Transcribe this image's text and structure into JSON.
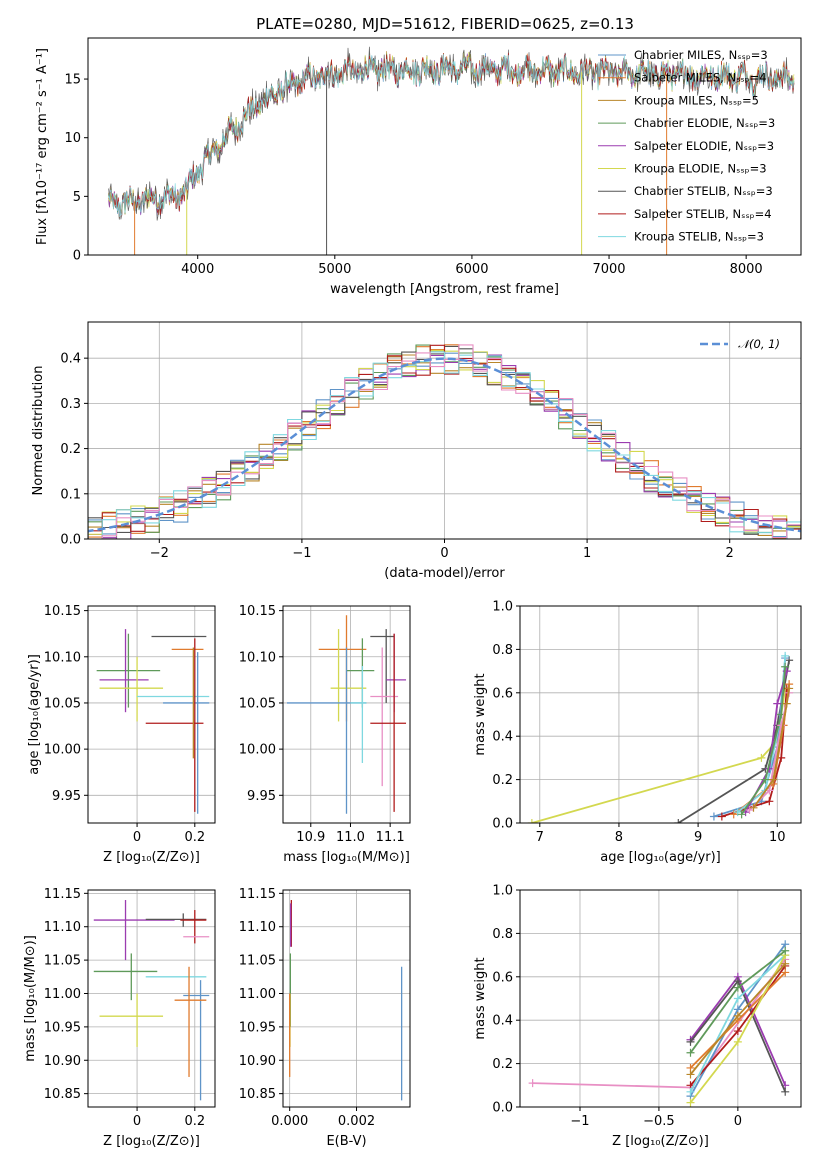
{
  "figure": {
    "title": "PLATE=0280, MJD=51612, FIBERID=0625, z=0.13"
  },
  "colors": {
    "chabrier_miles": "#5f94c8",
    "salpeter_miles": "#e07b2e",
    "kroupa_miles": "#b8862a",
    "chabrier_elodie": "#5f9a5a",
    "salpeter_elodie": "#9b3cb0",
    "kroupa_elodie": "#d3d84f",
    "chabrier_stelib": "#555555",
    "salpeter_stelib": "#b01c1c",
    "kroupa_stelib": "#7fd8e0",
    "pink": "#e88fc4",
    "normal_curve": "#5b8fd6"
  },
  "chart_data": [
    {
      "id": "spectrum",
      "type": "line",
      "title": "PLATE=0280, MJD=51612, FIBERID=0625, z=0.13",
      "xlabel": "wavelength [Angstrom, rest frame]",
      "ylabel": "Flux [fλ10⁻¹⁷ erg cm⁻² s⁻¹ A⁻¹]",
      "xlim": [
        3200,
        8400
      ],
      "ylim": [
        0,
        18.5
      ],
      "xticks": [
        4000,
        5000,
        6000,
        7000,
        8000
      ],
      "yticks": [
        0,
        5,
        10,
        15
      ],
      "grid": false,
      "legend_position": "top-right",
      "continuum": {
        "x": [
          3350,
          3500,
          3700,
          3900,
          4000,
          4200,
          4400,
          4600,
          4800,
          5000,
          5300,
          5600,
          6000,
          6500,
          7000,
          7500,
          8000,
          8350
        ],
        "y": [
          4.3,
          4.5,
          4.8,
          5.2,
          7.2,
          10.0,
          12.5,
          14.0,
          15.0,
          15.5,
          15.8,
          15.8,
          15.9,
          15.7,
          15.5,
          15.4,
          15.2,
          15.1
        ]
      },
      "series": [
        {
          "name": "Chabrier MILES, Nₛₛₚ=3",
          "color_key": "chabrier_miles"
        },
        {
          "name": "Salpeter MILES, Nₛₛₚ=4",
          "color_key": "salpeter_miles"
        },
        {
          "name": "Kroupa MILES, Nₛₛₚ=5",
          "color_key": "kroupa_miles"
        },
        {
          "name": "Chabrier ELODIE, Nₛₛₚ=3",
          "color_key": "chabrier_elodie"
        },
        {
          "name": "Salpeter ELODIE, Nₛₛₚ=3",
          "color_key": "salpeter_elodie"
        },
        {
          "name": "Kroupa ELODIE, Nₛₛₚ=3",
          "color_key": "kroupa_elodie"
        },
        {
          "name": "Chabrier STELIB, Nₛₛₚ=3",
          "color_key": "chabrier_stelib"
        },
        {
          "name": "Salpeter STELIB, Nₛₛₚ=4",
          "color_key": "salpeter_stelib"
        },
        {
          "name": "Kroupa STELIB, Nₛₛₚ=3",
          "color_key": "kroupa_stelib"
        }
      ],
      "drops": [
        {
          "x": 3540,
          "color_key": "salpeter_miles"
        },
        {
          "x": 3920,
          "color_key": "kroupa_elodie"
        },
        {
          "x": 4940,
          "color_key": "chabrier_stelib"
        },
        {
          "x": 6800,
          "color_key": "kroupa_elodie"
        },
        {
          "x": 7420,
          "color_key": "salpeter_miles"
        }
      ]
    },
    {
      "id": "residuals",
      "type": "step-histogram",
      "xlabel": "(data-model)/error",
      "ylabel": "Normed distribution",
      "xlim": [
        -2.5,
        2.5
      ],
      "ylim": [
        0,
        0.48
      ],
      "xticks": [
        -2,
        -1,
        0,
        1,
        2
      ],
      "yticks": [
        0.0,
        0.1,
        0.2,
        0.3,
        0.4
      ],
      "grid": true,
      "legend_position": "top-right",
      "normal_label": "𝒩(0, 1)",
      "bin_width": 0.1
    },
    {
      "id": "age-vs-Z",
      "type": "errorbar",
      "xlabel": "Z [log₁₀(Z/Z⊙)]",
      "ylabel": "age  [log₁₀(age/yr)]",
      "xlim": [
        -0.17,
        0.27
      ],
      "ylim": [
        9.92,
        10.155
      ],
      "xticks": [
        0.0,
        0.2
      ],
      "yticks": [
        9.95,
        10.0,
        10.05,
        10.1,
        10.15
      ],
      "grid": true,
      "points": [
        {
          "c": "chabrier_stelib",
          "x": 0.13,
          "xe": [
            0.05,
            0.24
          ],
          "y": 10.122,
          "ye": [
            10.122,
            10.122
          ]
        },
        {
          "c": "salpeter_miles",
          "x": 0.18,
          "xe": [
            0.12,
            0.23
          ],
          "y": 10.108,
          "ye": [
            10.108,
            10.108
          ]
        },
        {
          "c": "chabrier_elodie",
          "x": -0.03,
          "xe": [
            -0.14,
            0.08
          ],
          "y": 10.085,
          "ye": [
            10.045,
            10.125
          ]
        },
        {
          "c": "salpeter_elodie",
          "x": -0.04,
          "xe": [
            -0.13,
            0.04
          ],
          "y": 10.075,
          "ye": [
            10.04,
            10.13
          ]
        },
        {
          "c": "kroupa_elodie",
          "x": 0.0,
          "xe": [
            -0.13,
            0.09
          ],
          "y": 10.066,
          "ye": [
            10.03,
            10.1
          ]
        },
        {
          "c": "kroupa_stelib",
          "x": 0.15,
          "xe": [
            0.0,
            0.25
          ],
          "y": 10.057,
          "ye": [
            10.057,
            10.057
          ]
        },
        {
          "c": "chabrier_miles",
          "x": 0.21,
          "xe": [
            0.09,
            0.25
          ],
          "y": 10.05,
          "ye": [
            9.93,
            10.105
          ]
        },
        {
          "c": "salpeter_stelib",
          "x": 0.2,
          "xe": [
            0.03,
            0.23
          ],
          "y": 10.028,
          "ye": [
            9.932,
            10.12
          ]
        },
        {
          "c": "kroupa_miles",
          "x": 0.195,
          "xe": [
            0.195,
            0.195
          ],
          "y": 10.04,
          "ye": [
            9.99,
            10.11
          ]
        }
      ]
    },
    {
      "id": "age-vs-mass",
      "type": "errorbar",
      "xlabel": "mass [log₁₀(M/M⊙)]",
      "ylabel": "",
      "xlim": [
        10.83,
        11.15
      ],
      "ylim": [
        9.92,
        10.155
      ],
      "xticks": [
        10.9,
        11.0,
        11.1
      ],
      "yticks": [
        9.95,
        10.0,
        10.05,
        10.1,
        10.15
      ],
      "grid": true,
      "points": [
        {
          "c": "chabrier_stelib",
          "x": 11.09,
          "xe": [
            11.05,
            11.11
          ],
          "y": 10.122,
          "ye": [
            10.05,
            10.13
          ]
        },
        {
          "c": "salpeter_miles",
          "x": 10.99,
          "xe": [
            10.92,
            11.04
          ],
          "y": 10.108,
          "ye": [
            10.03,
            10.145
          ]
        },
        {
          "c": "chabrier_elodie",
          "x": 11.03,
          "xe": [
            10.99,
            11.06
          ],
          "y": 10.085,
          "ye": [
            10.045,
            10.12
          ]
        },
        {
          "c": "salpeter_elodie",
          "x": 11.11,
          "xe": [
            11.09,
            11.14
          ],
          "y": 10.075,
          "ye": [
            10.04,
            10.125
          ]
        },
        {
          "c": "kroupa_elodie",
          "x": 10.97,
          "xe": [
            10.95,
            11.04
          ],
          "y": 10.066,
          "ye": [
            10.03,
            10.13
          ]
        },
        {
          "c": "pink",
          "x": 11.08,
          "xe": [
            11.05,
            11.12
          ],
          "y": 10.057,
          "ye": [
            9.96,
            10.11
          ]
        },
        {
          "c": "chabrier_miles",
          "x": 10.99,
          "xe": [
            10.84,
            11.04
          ],
          "y": 10.05,
          "ye": [
            9.93,
            10.11
          ]
        },
        {
          "c": "kroupa_stelib",
          "x": 11.03,
          "xe": [
            11.0,
            11.04
          ],
          "y": 10.05,
          "ye": [
            9.985,
            10.09
          ]
        },
        {
          "c": "salpeter_stelib",
          "x": 11.11,
          "xe": [
            11.05,
            11.14
          ],
          "y": 10.028,
          "ye": [
            9.932,
            10.125
          ]
        }
      ]
    },
    {
      "id": "mass-weight-vs-age",
      "type": "cumulative-line",
      "xlabel": "age  [log₁₀(age/yr)]",
      "ylabel": "mass weight",
      "xlim": [
        6.75,
        10.3
      ],
      "ylim": [
        0,
        1.0
      ],
      "xticks": [
        7,
        8,
        9,
        10
      ],
      "yticks": [
        0.0,
        0.2,
        0.4,
        0.6,
        0.8,
        1.0
      ],
      "grid": true,
      "series": [
        {
          "c": "kroupa_elodie",
          "x": [
            6.9,
            9.8,
            10.0,
            10.1
          ],
          "y": [
            0.0,
            0.3,
            0.38,
            0.62
          ]
        },
        {
          "c": "chabrier_stelib",
          "x": [
            8.75,
            9.85,
            10.0,
            10.15
          ],
          "y": [
            0.0,
            0.25,
            0.45,
            0.75
          ]
        },
        {
          "c": "chabrier_miles",
          "x": [
            9.2,
            9.8,
            10.0,
            10.1
          ],
          "y": [
            0.03,
            0.1,
            0.35,
            0.76
          ]
        },
        {
          "c": "salpeter_stelib",
          "x": [
            9.3,
            9.9,
            10.05,
            10.12
          ],
          "y": [
            0.03,
            0.1,
            0.3,
            0.62
          ]
        },
        {
          "c": "salpeter_miles",
          "x": [
            9.45,
            9.95,
            10.08,
            10.15
          ],
          "y": [
            0.04,
            0.18,
            0.45,
            0.64
          ]
        },
        {
          "c": "kroupa_stelib",
          "x": [
            9.5,
            9.85,
            10.05,
            10.1
          ],
          "y": [
            0.05,
            0.15,
            0.5,
            0.77
          ]
        },
        {
          "c": "salpeter_elodie",
          "x": [
            9.6,
            9.9,
            10.0,
            10.12
          ],
          "y": [
            0.05,
            0.25,
            0.55,
            0.7
          ]
        },
        {
          "c": "chabrier_elodie",
          "x": [
            9.55,
            9.85,
            10.05,
            10.1
          ],
          "y": [
            0.04,
            0.2,
            0.5,
            0.72
          ]
        },
        {
          "c": "pink",
          "x": [
            9.65,
            9.9,
            10.05,
            10.15
          ],
          "y": [
            0.06,
            0.15,
            0.45,
            0.6
          ]
        },
        {
          "c": "kroupa_miles",
          "x": [
            9.7,
            9.95,
            10.12,
            10.15
          ],
          "y": [
            0.07,
            0.2,
            0.55,
            0.62
          ]
        }
      ]
    },
    {
      "id": "mass-vs-Z",
      "type": "errorbar",
      "xlabel": "Z [log₁₀(Z/Z⊙)]",
      "ylabel": "mass [log₁₀(M/M⊙)]",
      "xlim": [
        -0.17,
        0.27
      ],
      "ylim": [
        10.83,
        11.155
      ],
      "xticks": [
        0.0,
        0.2
      ],
      "yticks": [
        10.85,
        10.9,
        10.95,
        11.0,
        11.05,
        11.1,
        11.15
      ],
      "grid": true,
      "points": [
        {
          "c": "salpeter_elodie",
          "x": -0.04,
          "xe": [
            -0.15,
            0.13
          ],
          "y": 11.11,
          "ye": [
            11.05,
            11.14
          ]
        },
        {
          "c": "chabrier_stelib",
          "x": 0.16,
          "xe": [
            0.03,
            0.24
          ],
          "y": 11.111,
          "ye": [
            11.1,
            11.12
          ]
        },
        {
          "c": "salpeter_stelib",
          "x": 0.2,
          "xe": [
            0.15,
            0.24
          ],
          "y": 11.11,
          "ye": [
            11.075,
            11.125
          ]
        },
        {
          "c": "pink",
          "x": 0.21,
          "xe": [
            0.16,
            0.25
          ],
          "y": 11.085,
          "ye": [
            11.085,
            11.085
          ]
        },
        {
          "c": "chabrier_elodie",
          "x": -0.02,
          "xe": [
            -0.15,
            0.07
          ],
          "y": 11.033,
          "ye": [
            10.99,
            11.06
          ]
        },
        {
          "c": "kroupa_stelib",
          "x": 0.15,
          "xe": [
            0.03,
            0.24
          ],
          "y": 11.025,
          "ye": [
            11.025,
            11.025
          ]
        },
        {
          "c": "chabrier_miles",
          "x": 0.22,
          "xe": [
            0.16,
            0.25
          ],
          "y": 10.997,
          "ye": [
            10.84,
            11.02
          ]
        },
        {
          "c": "salpeter_miles",
          "x": 0.18,
          "xe": [
            0.13,
            0.24
          ],
          "y": 10.99,
          "ye": [
            10.875,
            11.04
          ]
        },
        {
          "c": "kroupa_elodie",
          "x": 0.0,
          "xe": [
            -0.13,
            0.09
          ],
          "y": 10.966,
          "ye": [
            10.92,
            11.0
          ]
        }
      ]
    },
    {
      "id": "mass-vs-EBV",
      "type": "errorbar",
      "xlabel": "E(B-V)",
      "ylabel": "",
      "xlim": [
        -0.0002,
        0.0036
      ],
      "ylim": [
        10.83,
        11.155
      ],
      "xticks": [
        0.0,
        0.002
      ],
      "yticks": [
        10.85,
        10.9,
        10.95,
        11.0,
        11.05,
        11.1,
        11.15
      ],
      "grid": true,
      "points": [
        {
          "c": "salpeter_stelib",
          "x": 5e-05,
          "xe": [
            5e-05,
            5e-05
          ],
          "y": 11.11,
          "ye": [
            11.07,
            11.14
          ]
        },
        {
          "c": "salpeter_elodie",
          "x": 3e-05,
          "xe": [
            3e-05,
            3e-05
          ],
          "y": 11.1,
          "ye": [
            11.07,
            11.135
          ]
        },
        {
          "c": "chabrier_elodie",
          "x": 2e-05,
          "xe": [
            2e-05,
            2e-05
          ],
          "y": 11.0,
          "ye": [
            10.95,
            11.06
          ]
        },
        {
          "c": "kroupa_elodie",
          "x": 1e-05,
          "xe": [
            1e-05,
            1e-05
          ],
          "y": 10.96,
          "ye": [
            10.92,
            11.0
          ]
        },
        {
          "c": "salpeter_miles",
          "x": 0.0,
          "xe": [
            0.0,
            0.0
          ],
          "y": 10.95,
          "ye": [
            10.875,
            11.0
          ]
        },
        {
          "c": "chabrier_miles",
          "x": 0.00335,
          "xe": [
            0.00335,
            0.00335
          ],
          "y": 10.94,
          "ye": [
            10.84,
            11.04
          ]
        }
      ]
    },
    {
      "id": "mass-weight-vs-Z",
      "type": "cumulative-line",
      "xlabel": "Z [log₁₀(Z/Z⊙)]",
      "ylabel": "mass weight",
      "xlim": [
        -1.38,
        0.4
      ],
      "ylim": [
        0,
        1.0
      ],
      "xticks": [
        -1.0,
        -0.5,
        0.0
      ],
      "yticks": [
        0.0,
        0.2,
        0.4,
        0.6,
        0.8,
        1.0
      ],
      "grid": true,
      "series": [
        {
          "c": "pink",
          "x": [
            -1.3,
            -0.3,
            0.3
          ],
          "y": [
            0.11,
            0.09,
            0.68
          ]
        },
        {
          "c": "chabrier_miles",
          "x": [
            -0.3,
            0.0,
            0.3
          ],
          "y": [
            0.05,
            0.45,
            0.75
          ]
        },
        {
          "c": "salpeter_elodie",
          "x": [
            -0.3,
            0.0,
            0.3
          ],
          "y": [
            0.31,
            0.6,
            0.1
          ]
        },
        {
          "c": "chabrier_stelib",
          "x": [
            -0.3,
            0.0,
            0.3
          ],
          "y": [
            0.3,
            0.58,
            0.07
          ]
        },
        {
          "c": "salpeter_stelib",
          "x": [
            -0.3,
            0.0,
            0.3
          ],
          "y": [
            0.1,
            0.35,
            0.65
          ]
        },
        {
          "c": "kroupa_stelib",
          "x": [
            -0.3,
            0.0,
            0.3
          ],
          "y": [
            0.07,
            0.5,
            0.7
          ]
        },
        {
          "c": "salpeter_miles",
          "x": [
            -0.3,
            0.0,
            0.3
          ],
          "y": [
            0.18,
            0.4,
            0.62
          ]
        },
        {
          "c": "kroupa_elodie",
          "x": [
            -0.3,
            0.0,
            0.3
          ],
          "y": [
            0.02,
            0.3,
            0.7
          ]
        },
        {
          "c": "chabrier_elodie",
          "x": [
            -0.3,
            0.0,
            0.3
          ],
          "y": [
            0.25,
            0.55,
            0.72
          ]
        },
        {
          "c": "kroupa_miles",
          "x": [
            -0.3,
            0.0,
            0.3
          ],
          "y": [
            0.15,
            0.42,
            0.66
          ]
        }
      ]
    }
  ]
}
